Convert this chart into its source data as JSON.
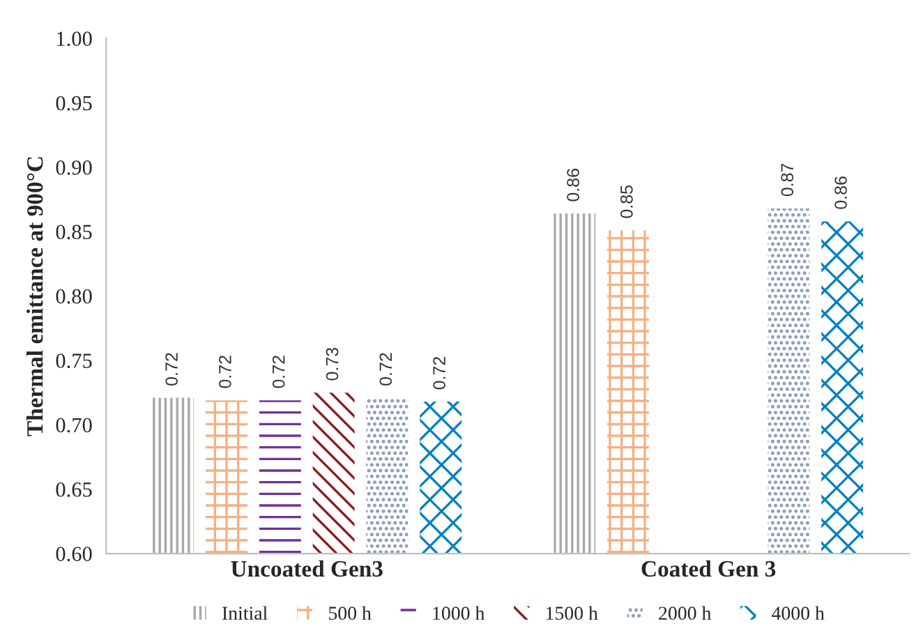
{
  "chart_data": {
    "type": "bar",
    "ylabel": "Thermal emittance at 900°C",
    "categories": [
      "Uncoated Gen3",
      "Coated Gen 3"
    ],
    "ylim": [
      0.6,
      1.0
    ],
    "yticks": [
      {
        "value": 0.6,
        "label": "0.60"
      },
      {
        "value": 0.65,
        "label": "0.65"
      },
      {
        "value": 0.7,
        "label": "0.70"
      },
      {
        "value": 0.75,
        "label": "0.75"
      },
      {
        "value": 0.8,
        "label": "0.80"
      },
      {
        "value": 0.85,
        "label": "0.85"
      },
      {
        "value": 0.9,
        "label": "0.90"
      },
      {
        "value": 0.95,
        "label": "0.95"
      },
      {
        "value": 1.0,
        "label": "1.00"
      }
    ],
    "grid": false,
    "legend": "bottom",
    "series": [
      {
        "name": "Initial",
        "color": "#a6a6a6",
        "values": [
          0.721,
          0.864
        ],
        "value_labels": [
          "0.72",
          "0.86"
        ]
      },
      {
        "name": "500 h",
        "color": "#f4b183",
        "values": [
          0.719,
          0.851
        ],
        "value_labels": [
          "0.72",
          "0.85"
        ]
      },
      {
        "name": "1000 h",
        "color": "#7030a0",
        "values": [
          0.719,
          null
        ],
        "value_labels": [
          "0.72",
          null
        ]
      },
      {
        "name": "1500 h",
        "color": "#8b1a1a",
        "values": [
          0.725,
          null
        ],
        "value_labels": [
          "0.73",
          null
        ]
      },
      {
        "name": "2000 h",
        "color": "#8497b0",
        "values": [
          0.721,
          0.868
        ],
        "value_labels": [
          "0.72",
          "0.87"
        ]
      },
      {
        "name": "4000 h",
        "color": "#0080c0",
        "values": [
          0.718,
          0.858
        ],
        "value_labels": [
          "0.72",
          "0.86"
        ]
      }
    ]
  }
}
